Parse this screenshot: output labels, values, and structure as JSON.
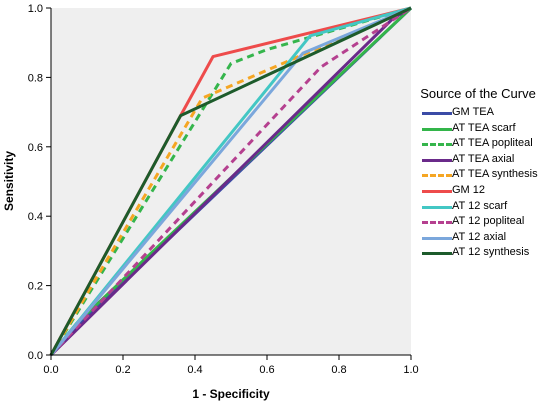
{
  "chart_data": {
    "type": "line",
    "xlabel": "1 - Specificity",
    "ylabel": "Sensitivity",
    "xlim": [
      0.0,
      1.0
    ],
    "ylim": [
      0.0,
      1.0
    ],
    "x_ticks": [
      "0.0",
      "0.2",
      "0.4",
      "0.6",
      "0.8",
      "1.0"
    ],
    "y_ticks": [
      "0.0",
      "0.2",
      "0.4",
      "0.6",
      "0.8",
      "1.0"
    ],
    "grid": false,
    "legend_position": "right",
    "legend_title": "Source of the Curve",
    "plot_background": "#efefef",
    "series": [
      {
        "name": "GM TEA",
        "color": "#3b4ba6",
        "dashed": false,
        "points": [
          [
            0,
            0
          ],
          [
            0.05,
            0.06
          ],
          [
            1,
            1
          ]
        ]
      },
      {
        "name": "AT TEA scarf",
        "color": "#33b54a",
        "dashed": false,
        "points": [
          [
            0,
            0
          ],
          [
            0.07,
            0.09
          ],
          [
            1,
            1
          ]
        ]
      },
      {
        "name": "AT TEA popliteal",
        "color": "#35b54c",
        "dashed": true,
        "points": [
          [
            0,
            0
          ],
          [
            0.5,
            0.84
          ],
          [
            0.6,
            0.88
          ],
          [
            1,
            1
          ]
        ]
      },
      {
        "name": "AT TEA axial",
        "color": "#6a2a8a",
        "dashed": false,
        "points": [
          [
            0,
            0
          ],
          [
            0.95,
            0.97
          ],
          [
            1,
            1
          ]
        ]
      },
      {
        "name": "AT TEA synthesis",
        "color": "#f5a623",
        "dashed": true,
        "points": [
          [
            0,
            0
          ],
          [
            0.42,
            0.74
          ],
          [
            1,
            1
          ]
        ]
      },
      {
        "name": "GM 12",
        "color": "#ee4b4b",
        "dashed": false,
        "points": [
          [
            0,
            0
          ],
          [
            0.36,
            0.69
          ],
          [
            0.45,
            0.86
          ],
          [
            1,
            1
          ]
        ]
      },
      {
        "name": "AT 12 scarf",
        "color": "#43c7c4",
        "dashed": false,
        "points": [
          [
            0,
            0
          ],
          [
            0.72,
            0.92
          ],
          [
            1,
            1
          ]
        ]
      },
      {
        "name": "AT 12 popliteal",
        "color": "#b5408f",
        "dashed": true,
        "points": [
          [
            0,
            0
          ],
          [
            0.75,
            0.83
          ],
          [
            1,
            1
          ]
        ]
      },
      {
        "name": "AT 12 axial",
        "color": "#7ba7dc",
        "dashed": false,
        "points": [
          [
            0,
            0
          ],
          [
            0.7,
            0.87
          ],
          [
            1,
            1
          ]
        ]
      },
      {
        "name": "AT 12 synthesis",
        "color": "#1d5b2b",
        "dashed": false,
        "points": [
          [
            0,
            0
          ],
          [
            0.36,
            0.69
          ],
          [
            1,
            1
          ]
        ]
      }
    ]
  }
}
